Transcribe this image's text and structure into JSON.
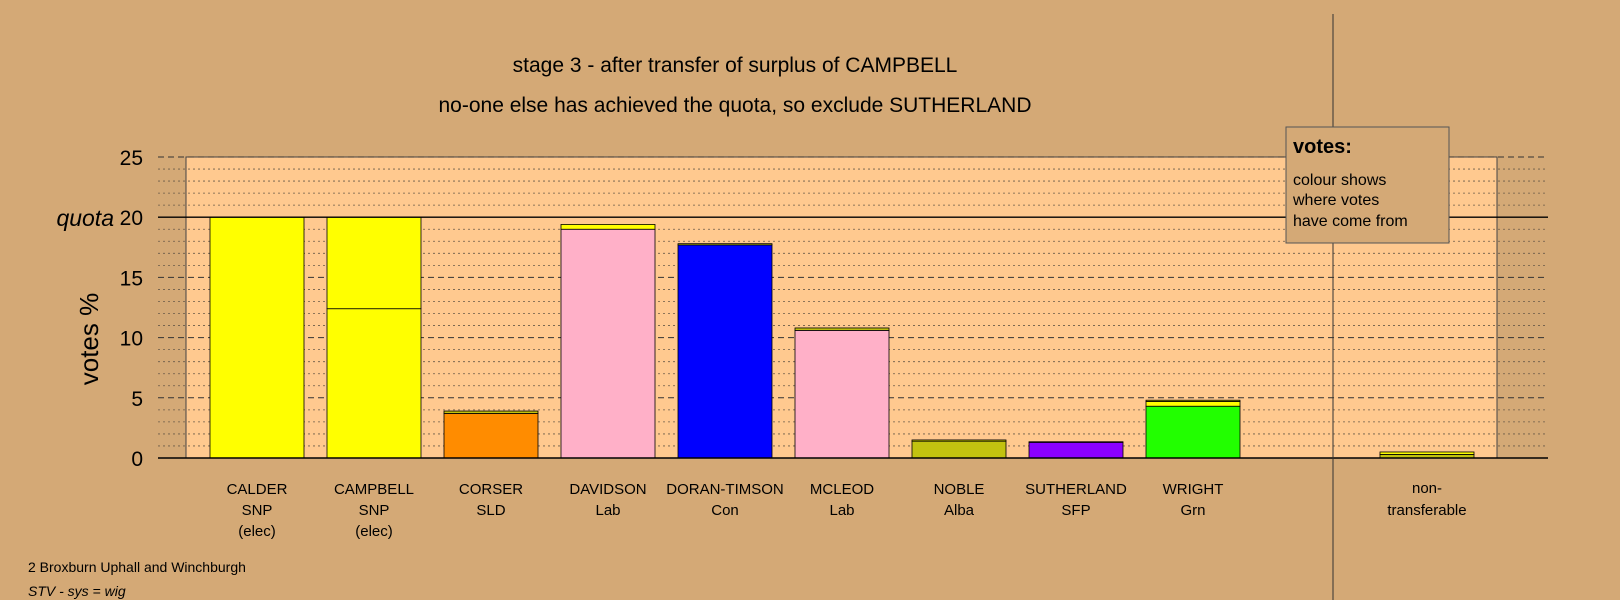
{
  "chart_data": {
    "type": "bar",
    "title": "stage 3 - after transfer of surplus of CAMPBELL",
    "subtitle": "no-one else has achieved the quota, so exclude SUTHERLAND",
    "ylabel": "votes %",
    "ylim": [
      0,
      25
    ],
    "yticks": [
      "0",
      "5",
      "10",
      "15",
      "20",
      "25"
    ],
    "quota_label": "quota",
    "quota_value": 20,
    "grid": true,
    "legend": {
      "position": "top-right",
      "title": "votes:",
      "lines": [
        "colour shows",
        "where votes",
        "have come from"
      ]
    },
    "candidates": [
      {
        "name": "CALDER",
        "party": "SNP",
        "note": "(elec)",
        "segments": [
          {
            "value": 20.0,
            "color": "#ffff00"
          }
        ]
      },
      {
        "name": "CAMPBELL",
        "party": "SNP",
        "note": "(elec)",
        "segments": [
          {
            "value": 12.4,
            "color": "#ffff00"
          },
          {
            "value": 7.6,
            "color": "#ffff00"
          }
        ]
      },
      {
        "name": "CORSER",
        "party": "SLD",
        "note": "",
        "segments": [
          {
            "value": 3.7,
            "color": "#ff8c00"
          },
          {
            "value": 0.2,
            "color": "#c2c210"
          }
        ]
      },
      {
        "name": "DAVIDSON",
        "party": "Lab",
        "note": "",
        "segments": [
          {
            "value": 19.0,
            "color": "#ffb0c8"
          },
          {
            "value": 0.4,
            "color": "#ffff00"
          }
        ]
      },
      {
        "name": "DORAN-TIMSON",
        "party": "Con",
        "note": "",
        "segments": [
          {
            "value": 17.7,
            "color": "#0000ff"
          },
          {
            "value": 0.1,
            "color": "#ffff00"
          }
        ]
      },
      {
        "name": "MCLEOD",
        "party": "Lab",
        "note": "",
        "segments": [
          {
            "value": 10.6,
            "color": "#ffb0c8"
          },
          {
            "value": 0.2,
            "color": "#c2c210"
          }
        ]
      },
      {
        "name": "NOBLE",
        "party": "Alba",
        "note": "",
        "segments": [
          {
            "value": 1.4,
            "color": "#c2c210"
          },
          {
            "value": 0.1,
            "color": "#ffff00"
          }
        ]
      },
      {
        "name": "SUTHERLAND",
        "party": "SFP",
        "note": "",
        "segments": [
          {
            "value": 1.3,
            "color": "#8b00ff"
          },
          {
            "value": 0.05,
            "color": "#ffff00"
          }
        ]
      },
      {
        "name": "WRIGHT",
        "party": "Grn",
        "note": "",
        "segments": [
          {
            "value": 4.3,
            "color": "#22ff00"
          },
          {
            "value": 0.4,
            "color": "#ffff00"
          },
          {
            "value": 0.1,
            "color": "#c2c210"
          }
        ]
      }
    ],
    "nontransferable": {
      "label_line1": "non-",
      "label_line2": "transferable",
      "segments": [
        {
          "value": 0.3,
          "color": "#c2c210"
        },
        {
          "value": 0.2,
          "color": "#ffff00"
        }
      ]
    },
    "colors": {
      "background": "#d4a976",
      "plot_background": "#ffc98f",
      "legend_background": "#d4a976"
    }
  },
  "footer": {
    "constituency": "2 Broxburn Uphall and Winchburgh",
    "system": "STV - sys = wig"
  }
}
